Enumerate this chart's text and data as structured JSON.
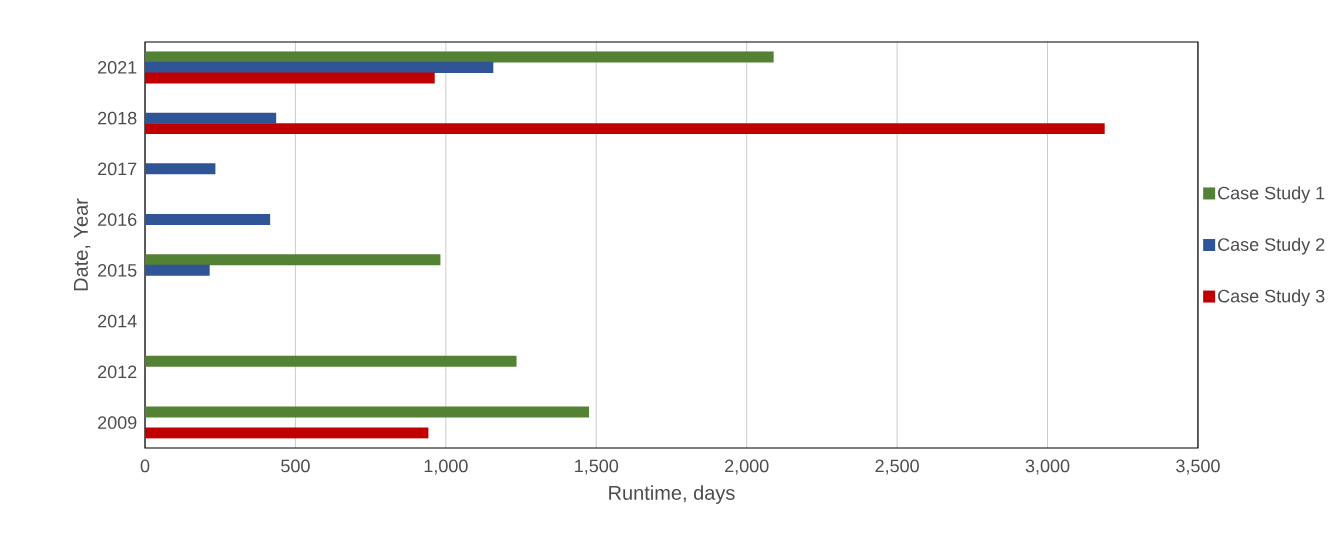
{
  "chart_data": {
    "type": "bar",
    "orientation": "horizontal",
    "xlabel": "Runtime, days",
    "ylabel": "Date, Year",
    "categories": [
      "2021",
      "2018",
      "2017",
      "2016",
      "2015",
      "2014",
      "2012",
      "2009"
    ],
    "series": [
      {
        "name": "Case Study 1",
        "color": "#548235",
        "values": [
          2090,
          null,
          null,
          null,
          982,
          null,
          1235,
          1476
        ]
      },
      {
        "name": "Case Study 2",
        "color": "#2f5597",
        "values": [
          1158,
          436,
          234,
          416,
          215,
          null,
          null,
          null
        ]
      },
      {
        "name": "Case Study 3",
        "color": "#c00000",
        "values": [
          963,
          3190,
          null,
          null,
          null,
          null,
          null,
          942
        ]
      }
    ],
    "xlim": [
      0,
      3500
    ],
    "xticks": [
      {
        "value": 0,
        "label": "0"
      },
      {
        "value": 500,
        "label": "500"
      },
      {
        "value": 1000,
        "label": "1,000"
      },
      {
        "value": 1500,
        "label": "1,500"
      },
      {
        "value": 2000,
        "label": "2,000"
      },
      {
        "value": 2500,
        "label": "2,500"
      },
      {
        "value": 3000,
        "label": "3,000"
      },
      {
        "value": 3500,
        "label": "3,500"
      }
    ],
    "grid": "x",
    "legend": "right"
  }
}
